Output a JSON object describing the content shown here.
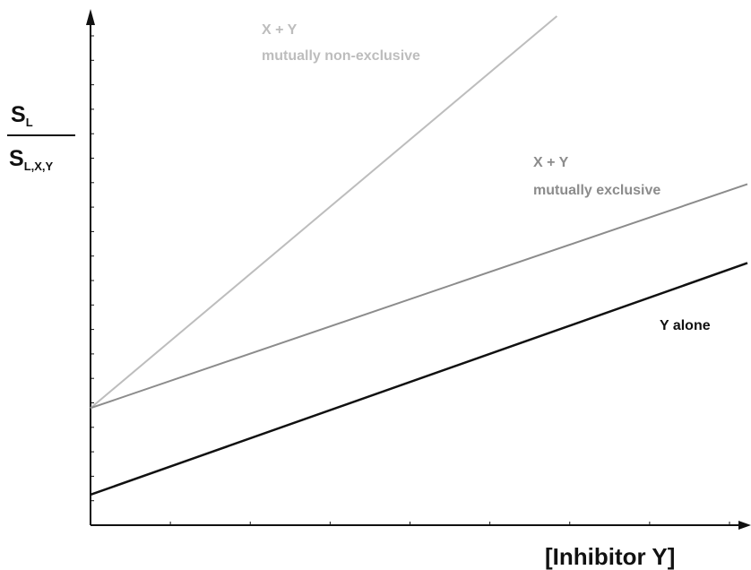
{
  "chart_data": {
    "type": "line",
    "xlabel": "[Inhibitor Y]",
    "ylabel": {
      "numerator_main": "S",
      "numerator_sub": "L",
      "denominator_main": "S",
      "denominator_sub": "L,X,Y"
    },
    "xlim": [
      0,
      10
    ],
    "ylim": [
      0,
      10
    ],
    "grid": false,
    "series": [
      {
        "name_line1": "X + Y",
        "name_line2": "mutually non-exclusive",
        "color": "#bdbdbd",
        "x": [
          0,
          7.1
        ],
        "y": [
          2.3,
          10.0
        ]
      },
      {
        "name_line1": "X + Y",
        "name_line2": "mutually exclusive",
        "color": "#8c8c8c",
        "x": [
          0,
          10
        ],
        "y": [
          2.3,
          6.7
        ]
      },
      {
        "name_line1": "Y alone",
        "name_line2": "",
        "color": "#111111",
        "x": [
          0,
          10
        ],
        "y": [
          0.6,
          5.15
        ]
      }
    ]
  }
}
